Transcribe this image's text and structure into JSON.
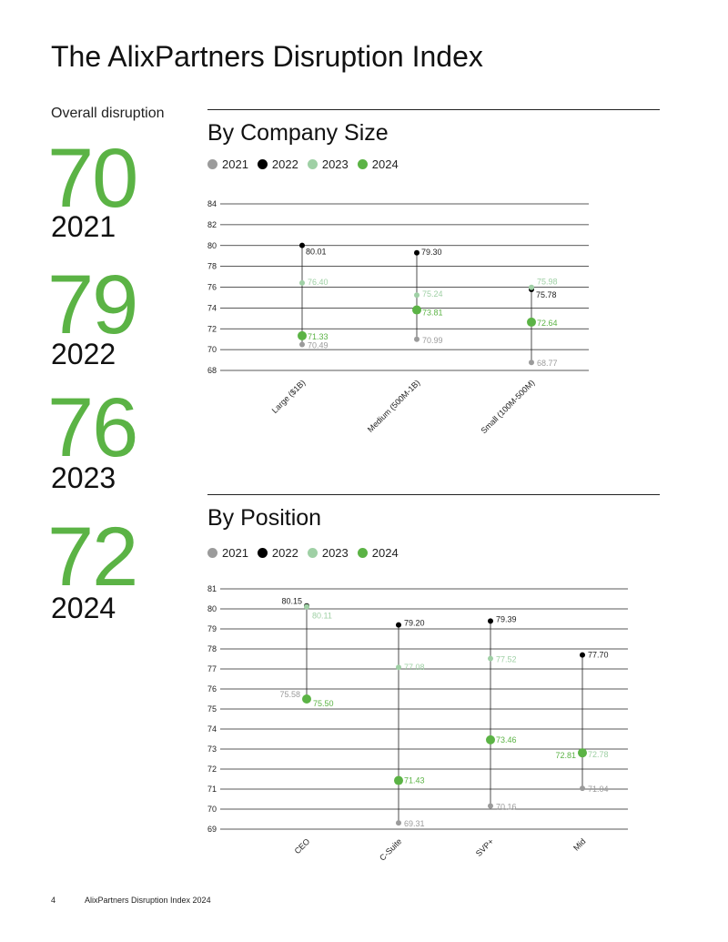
{
  "page": {
    "title": "The AlixPartners Disruption Index",
    "overall_label": "Overall disruption",
    "overall": [
      {
        "value": "70",
        "year": "2021"
      },
      {
        "value": "79",
        "year": "2022"
      },
      {
        "value": "76",
        "year": "2023"
      },
      {
        "value": "72",
        "year": "2024"
      }
    ],
    "footer_page": "4",
    "footer_text": "AlixPartners Disruption Index 2024"
  },
  "colors": {
    "2021": "#9b9b9b",
    "2022": "#000000",
    "2023": "#9fd0a5",
    "2024": "#5bb345",
    "accent": "#5bb345"
  },
  "legend": [
    "2021",
    "2022",
    "2023",
    "2024"
  ],
  "chart_data": [
    {
      "type": "dot-range",
      "title": "By Company Size",
      "categories": [
        "Large ($1B)",
        "Medium (500M-1B)",
        "Small (100M-500M)"
      ],
      "ylim": [
        68,
        84
      ],
      "yticks": [
        68,
        70,
        72,
        74,
        76,
        78,
        80,
        82,
        84
      ],
      "grid": true,
      "legend_position": "top-left",
      "series": [
        {
          "name": "2021",
          "values": [
            70.49,
            70.99,
            68.77
          ]
        },
        {
          "name": "2022",
          "values": [
            80.01,
            79.3,
            75.78
          ]
        },
        {
          "name": "2023",
          "values": [
            76.4,
            75.24,
            75.98
          ]
        },
        {
          "name": "2024",
          "values": [
            71.33,
            73.81,
            72.64
          ]
        }
      ]
    },
    {
      "type": "dot-range",
      "title": "By Position",
      "categories": [
        "CEO",
        "C-Suite",
        "SVP+",
        "Mid"
      ],
      "ylim": [
        69,
        81
      ],
      "yticks": [
        69,
        70,
        71,
        72,
        73,
        74,
        75,
        76,
        77,
        78,
        79,
        80,
        81
      ],
      "grid": true,
      "legend_position": "top-left",
      "series": [
        {
          "name": "2021",
          "values": [
            75.58,
            69.31,
            70.16,
            71.04
          ]
        },
        {
          "name": "2022",
          "values": [
            80.15,
            79.2,
            79.39,
            77.7
          ]
        },
        {
          "name": "2023",
          "values": [
            80.11,
            77.08,
            77.52,
            72.78
          ]
        },
        {
          "name": "2024",
          "values": [
            75.5,
            71.43,
            73.46,
            72.81
          ]
        }
      ]
    }
  ]
}
